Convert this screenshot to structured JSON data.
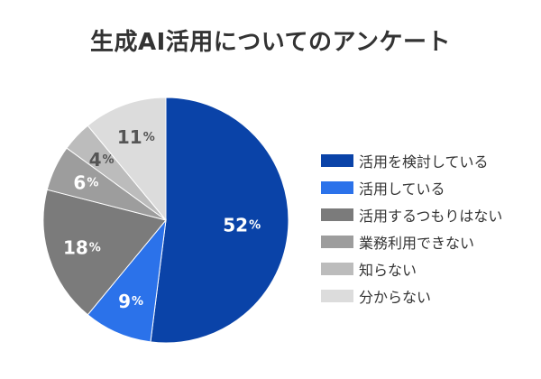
{
  "chart_data": {
    "type": "pie",
    "title": "生成AI活用についてのアンケート",
    "unit": "%",
    "categories": [
      "活用を検討している",
      "活用している",
      "活用するつもりはない",
      "業務利用できない",
      "知らない",
      "分からない"
    ],
    "values": [
      52,
      9,
      18,
      6,
      4,
      11
    ],
    "colors": [
      "#0a43a8",
      "#2b72ea",
      "#7b7b7b",
      "#9d9d9d",
      "#bcbcbc",
      "#dcdcdc"
    ],
    "label_colors": [
      "#ffffff",
      "#ffffff",
      "#ffffff",
      "#ffffff",
      "#555555",
      "#555555"
    ],
    "start_angle_deg": 0,
    "direction": "clockwise",
    "legend_position": "right",
    "grid": false
  }
}
